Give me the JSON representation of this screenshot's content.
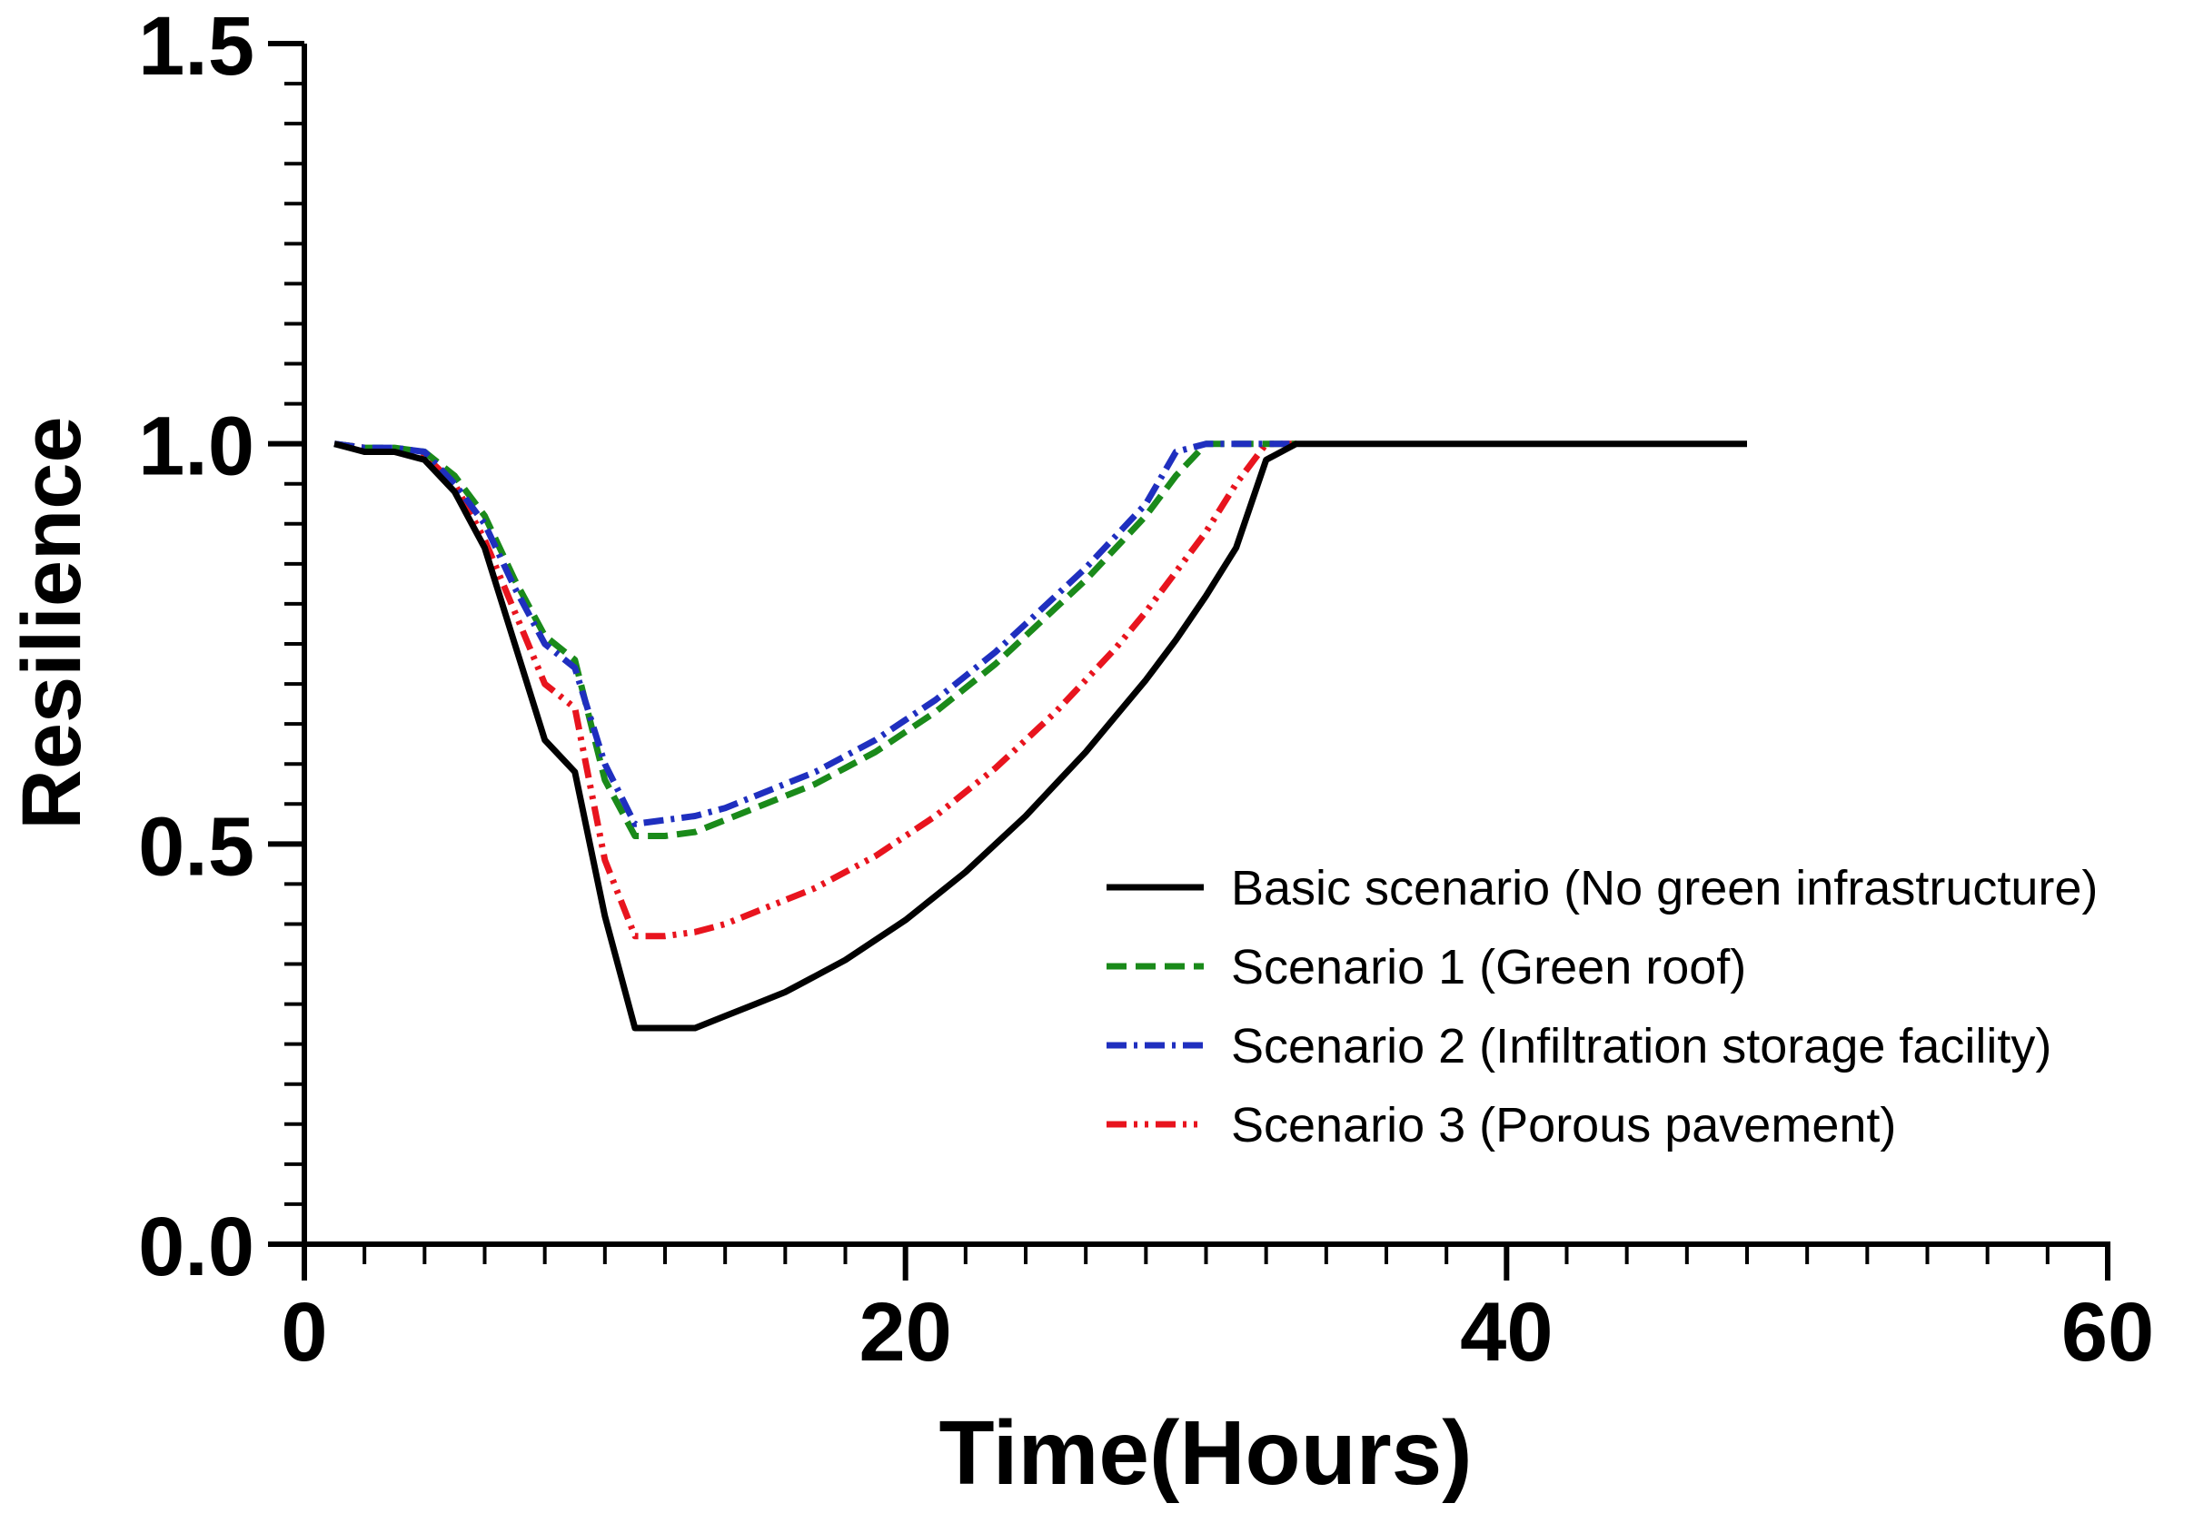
{
  "chart_data": {
    "type": "line",
    "title": "",
    "xlabel": "Time(Hours)",
    "ylabel": "Resilience",
    "xlim": [
      0,
      60
    ],
    "ylim": [
      0,
      1.5
    ],
    "x_major_ticks": [
      0,
      20,
      40,
      60
    ],
    "x_tick_labels": [
      "0",
      "20",
      "40",
      "60"
    ],
    "y_major_ticks": [
      0,
      0.5,
      1.0,
      1.5
    ],
    "y_tick_labels": [
      "0.0",
      "0.5",
      "1.0",
      "1.5"
    ],
    "grid": false,
    "legend_position": "center-right",
    "series": [
      {
        "name": "Basic scenario (No green infrastructure)",
        "color": "#000000",
        "style": "solid",
        "x": [
          1,
          2,
          3,
          4,
          5,
          6,
          7,
          8,
          9,
          10,
          11,
          12,
          13,
          14,
          15,
          16,
          17,
          18,
          19,
          20,
          21,
          22,
          23,
          24,
          25,
          26,
          27,
          28,
          29,
          30,
          31,
          32,
          33,
          34,
          35,
          40,
          45,
          48
        ],
        "values": [
          1.0,
          0.99,
          0.99,
          0.98,
          0.94,
          0.87,
          0.75,
          0.63,
          0.59,
          0.41,
          0.27,
          0.27,
          0.27,
          0.285,
          0.3,
          0.315,
          0.335,
          0.355,
          0.38,
          0.405,
          0.435,
          0.465,
          0.5,
          0.535,
          0.575,
          0.615,
          0.66,
          0.705,
          0.755,
          0.81,
          0.87,
          0.98,
          1.0,
          1.0,
          1.0,
          1.0,
          1.0,
          1.0
        ]
      },
      {
        "name": "Scenario 1 (Green roof)",
        "color": "#1a8a1a",
        "style": "dashed",
        "x": [
          1,
          2,
          3,
          4,
          5,
          6,
          7,
          8,
          9,
          10,
          11,
          12,
          13,
          14,
          15,
          16,
          17,
          18,
          19,
          20,
          21,
          22,
          23,
          24,
          25,
          26,
          27,
          28,
          29,
          30,
          31,
          32,
          33
        ],
        "values": [
          1.0,
          0.995,
          0.995,
          0.99,
          0.96,
          0.91,
          0.83,
          0.76,
          0.73,
          0.58,
          0.51,
          0.51,
          0.515,
          0.53,
          0.545,
          0.56,
          0.575,
          0.595,
          0.615,
          0.64,
          0.665,
          0.695,
          0.725,
          0.76,
          0.795,
          0.83,
          0.87,
          0.91,
          0.96,
          1.0,
          1.0,
          1.0,
          1.0
        ]
      },
      {
        "name": "Scenario 2 (Infiltration storage facility)",
        "color": "#1f2fbf",
        "style": "dash-dot",
        "x": [
          1,
          2,
          3,
          4,
          5,
          6,
          7,
          8,
          9,
          10,
          11,
          12,
          13,
          14,
          15,
          16,
          17,
          18,
          19,
          20,
          21,
          22,
          23,
          24,
          25,
          26,
          27,
          28,
          29,
          30,
          31,
          32,
          33
        ],
        "values": [
          1.0,
          0.995,
          0.995,
          0.99,
          0.95,
          0.9,
          0.82,
          0.75,
          0.72,
          0.6,
          0.525,
          0.53,
          0.535,
          0.545,
          0.56,
          0.575,
          0.59,
          0.61,
          0.63,
          0.655,
          0.68,
          0.71,
          0.74,
          0.775,
          0.81,
          0.845,
          0.885,
          0.925,
          0.99,
          1.0,
          1.0,
          1.0,
          1.0
        ]
      },
      {
        "name": "Scenario 3 (Porous pavement)",
        "color": "#e8141e",
        "style": "dash-dot-dot",
        "x": [
          1,
          2,
          3,
          4,
          5,
          6,
          7,
          8,
          9,
          10,
          11,
          12,
          13,
          14,
          15,
          16,
          17,
          18,
          19,
          20,
          21,
          22,
          23,
          24,
          25,
          26,
          27,
          28,
          29,
          30,
          31,
          32,
          33
        ],
        "values": [
          1.0,
          0.995,
          0.99,
          0.985,
          0.95,
          0.88,
          0.79,
          0.7,
          0.67,
          0.48,
          0.385,
          0.385,
          0.39,
          0.4,
          0.415,
          0.43,
          0.445,
          0.465,
          0.485,
          0.51,
          0.535,
          0.565,
          0.595,
          0.63,
          0.665,
          0.705,
          0.745,
          0.79,
          0.84,
          0.89,
          0.95,
          1.0,
          1.0
        ]
      }
    ]
  }
}
